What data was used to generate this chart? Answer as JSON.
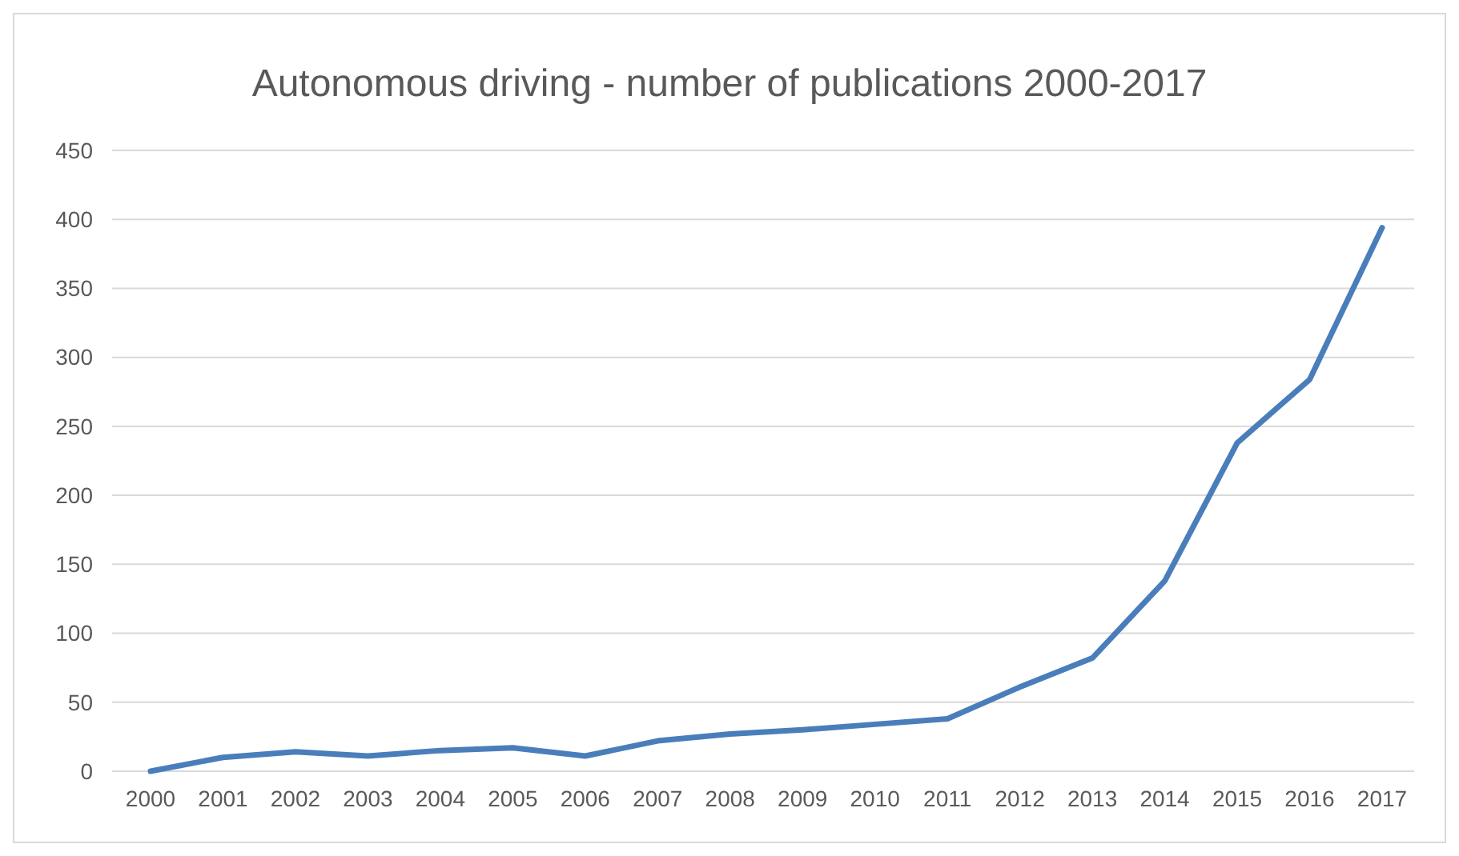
{
  "chart_data": {
    "type": "line",
    "title": "Autonomous driving - number of publications 2000-2017",
    "categories": [
      "2000",
      "2001",
      "2002",
      "2003",
      "2004",
      "2005",
      "2006",
      "2007",
      "2008",
      "2009",
      "2010",
      "2011",
      "2012",
      "2013",
      "2014",
      "2015",
      "2016",
      "2017"
    ],
    "series": [
      {
        "color": "#4a7ebb",
        "values": [
          0,
          10,
          14,
          11,
          15,
          17,
          11,
          22,
          27,
          30,
          34,
          38,
          61,
          82,
          138,
          238,
          284,
          394
        ]
      }
    ],
    "ylim": [
      0,
      450
    ],
    "yticks": [
      0,
      50,
      100,
      150,
      200,
      250,
      300,
      350,
      400,
      450
    ],
    "grid": "y",
    "legend": false,
    "marker": "none",
    "line_style": "solid"
  }
}
